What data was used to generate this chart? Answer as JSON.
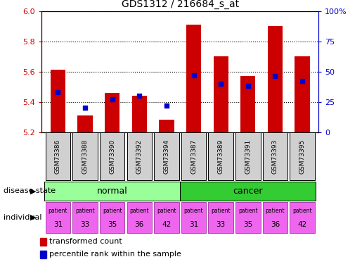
{
  "title": "GDS1312 / 216684_s_at",
  "samples": [
    "GSM73386",
    "GSM73388",
    "GSM73390",
    "GSM73392",
    "GSM73394",
    "GSM73387",
    "GSM73389",
    "GSM73391",
    "GSM73393",
    "GSM73395"
  ],
  "transformed_count": [
    5.61,
    5.31,
    5.46,
    5.44,
    5.28,
    5.91,
    5.7,
    5.57,
    5.9,
    5.7
  ],
  "percentile_rank": [
    33,
    20,
    27,
    30,
    22,
    47,
    40,
    38,
    46,
    42
  ],
  "individuals": [
    "31",
    "33",
    "35",
    "36",
    "42",
    "31",
    "33",
    "35",
    "36",
    "42"
  ],
  "ylim_left": [
    5.2,
    6.0
  ],
  "ylim_right": [
    0,
    100
  ],
  "yticks_left": [
    5.2,
    5.4,
    5.6,
    5.8,
    6.0
  ],
  "yticks_right": [
    0,
    25,
    50,
    75,
    100
  ],
  "ytick_labels_right": [
    "0",
    "25",
    "50",
    "75",
    "100%"
  ],
  "bar_color": "#cc0000",
  "dot_color": "#0000cc",
  "normal_color": "#99ff99",
  "cancer_color": "#33cc33",
  "patient_color": "#ee66ee",
  "sample_box_color": "#d0d0d0",
  "bar_width": 0.55,
  "left_label_color": "#cc0000",
  "right_label_color": "#0000cc"
}
